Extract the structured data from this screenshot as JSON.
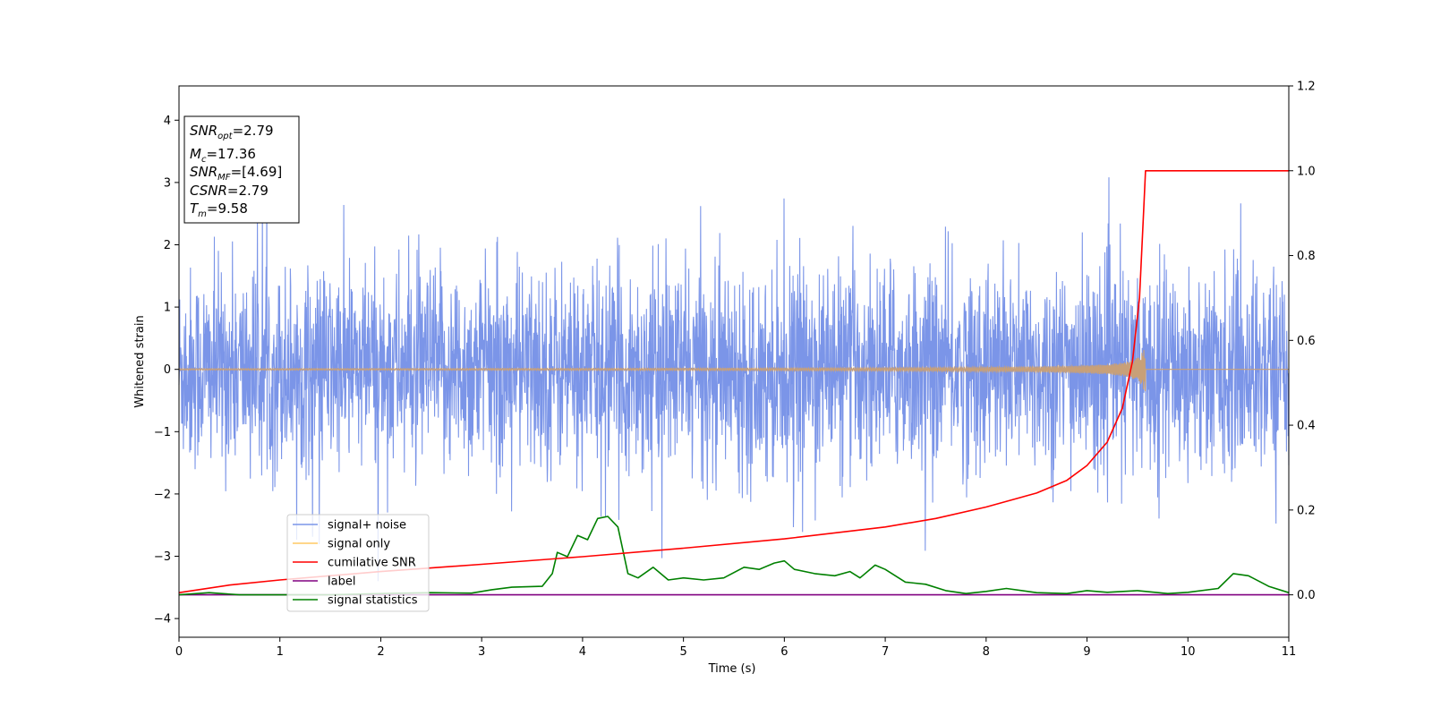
{
  "chart_data": {
    "type": "line",
    "xlabel": "Time (s)",
    "ylabel": "Whitened strain",
    "xlim": [
      0,
      11
    ],
    "ylim": [
      -4.3,
      4.55
    ],
    "y2lim": [
      -0.1,
      1.2
    ],
    "x_ticks": [
      "0",
      "1",
      "2",
      "3",
      "4",
      "5",
      "6",
      "7",
      "8",
      "9",
      "10",
      "11"
    ],
    "y_ticks": [
      "-4",
      "-3",
      "-2",
      "-1",
      "0",
      "1",
      "2",
      "3",
      "4"
    ],
    "y2_ticks": [
      "0.0",
      "0.2",
      "0.4",
      "0.6",
      "0.8",
      "1.0",
      "1.2"
    ],
    "grid": false,
    "legend_position": "lower-left",
    "info_box": {
      "lines": [
        {
          "main": "SNR",
          "sub": "opt",
          "value": "=2.79"
        },
        {
          "main": "M",
          "sub": "c",
          "value": "=17.36"
        },
        {
          "main": "SNR",
          "sub": "MF",
          "value": "=[4.69]"
        },
        {
          "main": "CSNR",
          "sub": "",
          "value": "=2.79"
        },
        {
          "main": "T",
          "sub": "m",
          "value": "=9.58"
        }
      ]
    },
    "series": [
      {
        "name": "signal+ noise",
        "axis": "left",
        "color": "#7b95e8",
        "noise_envelope": {
          "typical_amplitude": 1.3,
          "max_positive_peak": 3.3,
          "min_negative_peak": -3.4
        }
      },
      {
        "name": "signal only",
        "axis": "left",
        "color": "#ffc864",
        "merger_time": 9.58,
        "peak_amplitude": 0.5
      },
      {
        "name": "cumilative SNR",
        "axis": "right",
        "color": "#ff0000",
        "points": [
          [
            0,
            0.005
          ],
          [
            0.5,
            0.023
          ],
          [
            1,
            0.035
          ],
          [
            2,
            0.055
          ],
          [
            3,
            0.072
          ],
          [
            4,
            0.09
          ],
          [
            5,
            0.11
          ],
          [
            6,
            0.132
          ],
          [
            7,
            0.16
          ],
          [
            7.5,
            0.18
          ],
          [
            8,
            0.207
          ],
          [
            8.5,
            0.24
          ],
          [
            8.8,
            0.27
          ],
          [
            9.0,
            0.305
          ],
          [
            9.2,
            0.36
          ],
          [
            9.35,
            0.44
          ],
          [
            9.45,
            0.55
          ],
          [
            9.52,
            0.7
          ],
          [
            9.56,
            0.9
          ],
          [
            9.58,
            1.0
          ],
          [
            11,
            1.0
          ]
        ]
      },
      {
        "name": "label",
        "axis": "right",
        "color": "#800080",
        "points": [
          [
            0,
            0
          ],
          [
            11,
            0
          ]
        ]
      },
      {
        "name": "signal statistics",
        "axis": "right",
        "color": "#008000",
        "points": [
          [
            0,
            0.0
          ],
          [
            0.3,
            0.005
          ],
          [
            0.6,
            0.0
          ],
          [
            1.5,
            0.0
          ],
          [
            2.0,
            0.003
          ],
          [
            2.5,
            0.005
          ],
          [
            2.9,
            0.004
          ],
          [
            3.1,
            0.012
          ],
          [
            3.3,
            0.018
          ],
          [
            3.6,
            0.02
          ],
          [
            3.7,
            0.05
          ],
          [
            3.75,
            0.1
          ],
          [
            3.85,
            0.09
          ],
          [
            3.95,
            0.14
          ],
          [
            4.05,
            0.13
          ],
          [
            4.15,
            0.18
          ],
          [
            4.25,
            0.185
          ],
          [
            4.35,
            0.16
          ],
          [
            4.45,
            0.05
          ],
          [
            4.55,
            0.04
          ],
          [
            4.7,
            0.065
          ],
          [
            4.85,
            0.035
          ],
          [
            5.0,
            0.04
          ],
          [
            5.2,
            0.035
          ],
          [
            5.4,
            0.04
          ],
          [
            5.6,
            0.065
          ],
          [
            5.75,
            0.06
          ],
          [
            5.9,
            0.075
          ],
          [
            6.0,
            0.08
          ],
          [
            6.1,
            0.06
          ],
          [
            6.3,
            0.05
          ],
          [
            6.5,
            0.045
          ],
          [
            6.65,
            0.055
          ],
          [
            6.75,
            0.04
          ],
          [
            6.9,
            0.07
          ],
          [
            7.0,
            0.06
          ],
          [
            7.2,
            0.03
          ],
          [
            7.4,
            0.025
          ],
          [
            7.6,
            0.01
          ],
          [
            7.8,
            0.003
          ],
          [
            8.0,
            0.008
          ],
          [
            8.2,
            0.015
          ],
          [
            8.5,
            0.005
          ],
          [
            8.8,
            0.003
          ],
          [
            9.0,
            0.01
          ],
          [
            9.2,
            0.006
          ],
          [
            9.5,
            0.01
          ],
          [
            9.8,
            0.003
          ],
          [
            10.0,
            0.006
          ],
          [
            10.3,
            0.015
          ],
          [
            10.45,
            0.05
          ],
          [
            10.6,
            0.045
          ],
          [
            10.8,
            0.02
          ],
          [
            11.0,
            0.005
          ]
        ]
      }
    ]
  }
}
